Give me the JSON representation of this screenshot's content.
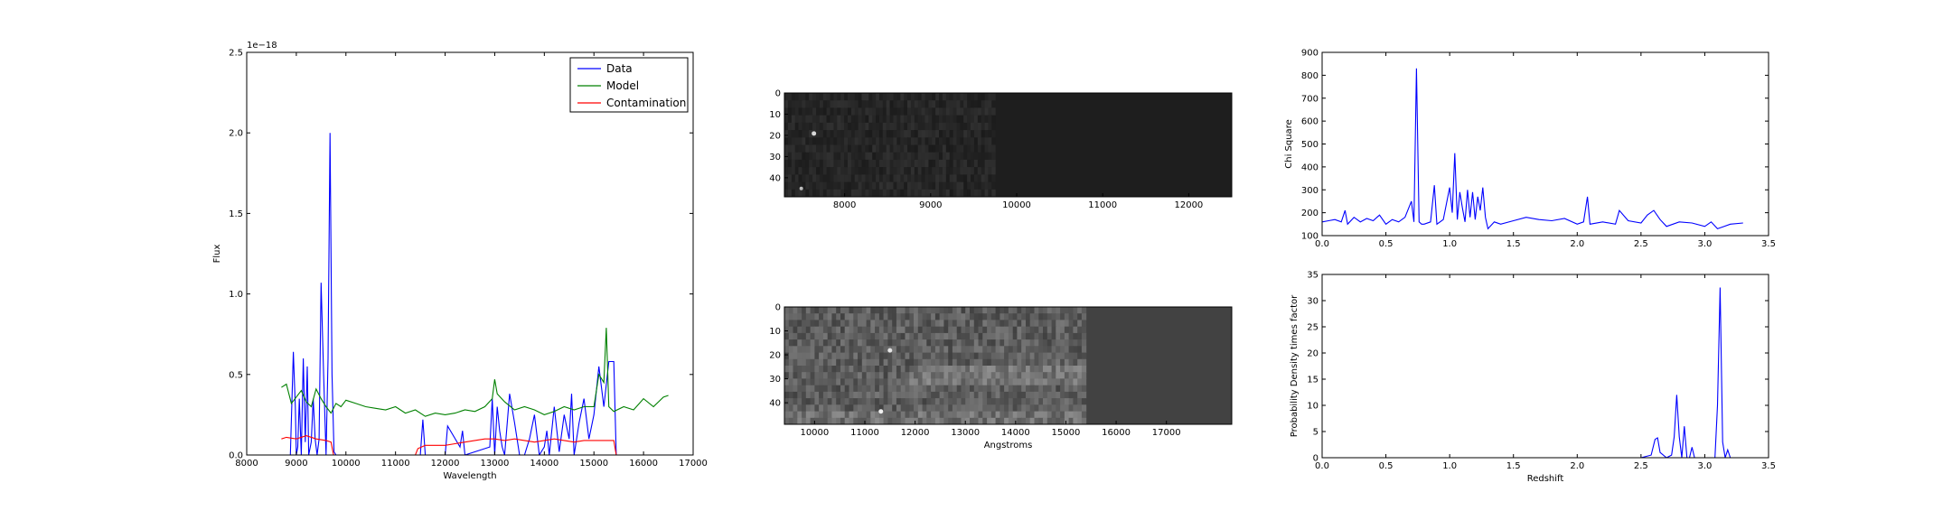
{
  "figure": {
    "background": "#ffffff"
  },
  "chart_data": [
    {
      "id": "spectrum",
      "type": "line",
      "xlabel": "Wavelength",
      "ylabel": "Flux",
      "offset_label": "1e−18",
      "xlim": [
        8000,
        17000
      ],
      "ylim": [
        0,
        2.5
      ],
      "xticks": [
        "8000",
        "9000",
        "10000",
        "11000",
        "12000",
        "13000",
        "14000",
        "15000",
        "16000",
        "17000"
      ],
      "yticks": [
        "0.0",
        "0.5",
        "1.0",
        "1.5",
        "2.0",
        "2.5"
      ],
      "legend": {
        "placement": "top-right",
        "entries": [
          "Data",
          "Model",
          "Contamination"
        ]
      },
      "series": [
        {
          "name": "Data",
          "color": "#0000ff",
          "x": [
            8880,
            8940,
            8980,
            9000,
            9030,
            9060,
            9100,
            9140,
            9180,
            9220,
            9250,
            9300,
            9340,
            9380,
            9420,
            9460,
            9500,
            9550,
            9600,
            9640,
            9680,
            9720,
            9760,
            9800,
            9850,
            9900,
            9950,
            10000,
            11500,
            11550,
            11600,
            12000,
            12050,
            12300,
            12350,
            12400,
            12900,
            12950,
            13000,
            13050,
            13100,
            13150,
            13200,
            13300,
            13400,
            13500,
            13600,
            13700,
            13800,
            13900,
            14000,
            14050,
            14100,
            14200,
            14300,
            14400,
            14500,
            14550,
            14600,
            14700,
            14800,
            14900,
            15000,
            15100,
            15200,
            15300,
            15400,
            15450
          ],
          "y": [
            0.0,
            0.64,
            0.3,
            0.0,
            0.05,
            0.35,
            0.0,
            0.6,
            0.08,
            0.55,
            0.0,
            0.08,
            0.35,
            0.1,
            0.0,
            0.1,
            1.07,
            0.5,
            0.0,
            0.6,
            2.0,
            0.5,
            0.02,
            0.0,
            0.0,
            0.0,
            0.0,
            0.0,
            0.0,
            0.22,
            0.0,
            0.0,
            0.18,
            0.05,
            0.15,
            0.0,
            0.05,
            0.35,
            0.0,
            0.3,
            0.15,
            0.05,
            0.0,
            0.38,
            0.2,
            0.0,
            0.0,
            0.1,
            0.25,
            0.0,
            0.05,
            0.15,
            0.0,
            0.3,
            0.02,
            0.25,
            0.1,
            0.38,
            0.0,
            0.2,
            0.35,
            0.1,
            0.25,
            0.55,
            0.3,
            0.58,
            0.58,
            0.0
          ]
        },
        {
          "name": "Model",
          "color": "#008000",
          "x": [
            8700,
            8800,
            8900,
            9000,
            9100,
            9200,
            9300,
            9400,
            9500,
            9600,
            9700,
            9800,
            9900,
            10000,
            10200,
            10400,
            10600,
            10800,
            11000,
            11200,
            11400,
            11600,
            11800,
            12000,
            12200,
            12400,
            12600,
            12800,
            12950,
            13000,
            13050,
            13200,
            13400,
            13600,
            13800,
            14000,
            14200,
            14400,
            14600,
            14800,
            15000,
            15100,
            15200,
            15250,
            15300,
            15400,
            15600,
            15800,
            16000,
            16200,
            16400,
            16500
          ],
          "y": [
            0.42,
            0.44,
            0.32,
            0.36,
            0.4,
            0.33,
            0.3,
            0.41,
            0.35,
            0.3,
            0.26,
            0.32,
            0.3,
            0.34,
            0.32,
            0.3,
            0.29,
            0.28,
            0.3,
            0.26,
            0.28,
            0.24,
            0.26,
            0.25,
            0.26,
            0.28,
            0.27,
            0.3,
            0.35,
            0.47,
            0.38,
            0.33,
            0.28,
            0.3,
            0.28,
            0.25,
            0.27,
            0.3,
            0.28,
            0.3,
            0.3,
            0.5,
            0.45,
            0.79,
            0.3,
            0.27,
            0.3,
            0.28,
            0.35,
            0.3,
            0.36,
            0.37
          ]
        },
        {
          "name": "Contamination",
          "color": "#ff0000",
          "x": [
            8700,
            8800,
            9000,
            9200,
            9400,
            9600,
            9700,
            9750,
            9800,
            11400,
            11450,
            11600,
            11800,
            12000,
            12200,
            12400,
            12600,
            12800,
            13000,
            13200,
            13400,
            13600,
            13800,
            14000,
            14200,
            14400,
            14600,
            14800,
            15000,
            15200,
            15400,
            15450
          ],
          "y": [
            0.1,
            0.11,
            0.1,
            0.12,
            0.1,
            0.09,
            0.08,
            0.0,
            0.0,
            0.0,
            0.04,
            0.06,
            0.06,
            0.06,
            0.07,
            0.08,
            0.09,
            0.1,
            0.1,
            0.09,
            0.1,
            0.09,
            0.08,
            0.09,
            0.1,
            0.09,
            0.08,
            0.09,
            0.09,
            0.09,
            0.09,
            0.0
          ]
        }
      ]
    },
    {
      "id": "image_top",
      "type": "heatmap",
      "colormap": "gray",
      "xlim": [
        7300,
        12500
      ],
      "yticks": [
        "0",
        "10",
        "20",
        "30",
        "40"
      ],
      "xticks": [
        "8000",
        "9000",
        "10000",
        "11000",
        "12000"
      ],
      "data_extent_x": [
        7300,
        9750
      ],
      "fill_color": "#1e1e1e"
    },
    {
      "id": "image_bottom",
      "type": "heatmap",
      "colormap": "gray",
      "xlabel": "Angstroms",
      "xlim": [
        9400,
        18300
      ],
      "yticks": [
        "0",
        "10",
        "20",
        "30",
        "40"
      ],
      "xticks": [
        "10000",
        "11000",
        "12000",
        "13000",
        "14000",
        "15000",
        "16000",
        "17000"
      ],
      "data_extent_x": [
        9400,
        15400
      ],
      "fill_color": "#424242"
    },
    {
      "id": "chisq",
      "type": "line",
      "ylabel": "Chi Square",
      "xlim": [
        0,
        3.5
      ],
      "ylim": [
        100,
        900
      ],
      "xticks": [
        "0.0",
        "0.5",
        "1.0",
        "1.5",
        "2.0",
        "2.5",
        "3.0",
        "3.5"
      ],
      "yticks": [
        "100",
        "200",
        "300",
        "400",
        "500",
        "600",
        "700",
        "800",
        "900"
      ],
      "series": [
        {
          "color": "#0000ff",
          "x": [
            0,
            0.05,
            0.1,
            0.15,
            0.18,
            0.2,
            0.25,
            0.3,
            0.35,
            0.4,
            0.45,
            0.5,
            0.55,
            0.6,
            0.65,
            0.7,
            0.72,
            0.74,
            0.76,
            0.78,
            0.8,
            0.85,
            0.88,
            0.9,
            0.95,
            1.0,
            1.02,
            1.04,
            1.06,
            1.08,
            1.1,
            1.12,
            1.14,
            1.16,
            1.18,
            1.2,
            1.22,
            1.24,
            1.26,
            1.28,
            1.3,
            1.35,
            1.4,
            1.5,
            1.6,
            1.7,
            1.8,
            1.9,
            2.0,
            2.05,
            2.08,
            2.1,
            2.2,
            2.3,
            2.33,
            2.4,
            2.5,
            2.55,
            2.6,
            2.65,
            2.7,
            2.8,
            2.9,
            3.0,
            3.05,
            3.1,
            3.2,
            3.3
          ],
          "y": [
            160,
            165,
            170,
            160,
            210,
            150,
            180,
            160,
            175,
            165,
            190,
            150,
            170,
            160,
            180,
            250,
            160,
            830,
            160,
            150,
            150,
            160,
            320,
            150,
            170,
            310,
            200,
            460,
            170,
            290,
            220,
            160,
            300,
            180,
            290,
            170,
            270,
            210,
            310,
            180,
            130,
            160,
            150,
            165,
            180,
            170,
            165,
            175,
            150,
            160,
            270,
            150,
            160,
            150,
            210,
            165,
            155,
            190,
            210,
            170,
            140,
            160,
            155,
            140,
            160,
            130,
            150,
            155
          ]
        }
      ]
    },
    {
      "id": "pdf",
      "type": "line",
      "xlabel": "Redshift",
      "ylabel": "Probability Density times factor",
      "xlim": [
        0,
        3.5
      ],
      "ylim": [
        0,
        35
      ],
      "xticks": [
        "0.0",
        "0.5",
        "1.0",
        "1.5",
        "2.0",
        "2.5",
        "3.0",
        "3.5"
      ],
      "yticks": [
        "0",
        "5",
        "10",
        "15",
        "20",
        "25",
        "30",
        "35"
      ],
      "series": [
        {
          "color": "#0000ff",
          "x": [
            0,
            2.5,
            2.58,
            2.61,
            2.63,
            2.65,
            2.7,
            2.74,
            2.76,
            2.78,
            2.8,
            2.82,
            2.84,
            2.86,
            2.88,
            2.9,
            2.92,
            3.0,
            3.08,
            3.1,
            3.12,
            3.14,
            3.16,
            3.18,
            3.2,
            3.3
          ],
          "y": [
            0,
            0,
            0.5,
            3.5,
            3.8,
            1,
            0,
            0.5,
            4,
            12,
            4,
            0,
            6,
            0,
            0,
            2,
            0,
            0,
            0,
            10,
            32.5,
            3,
            0,
            1.5,
            0,
            0
          ]
        }
      ]
    }
  ]
}
